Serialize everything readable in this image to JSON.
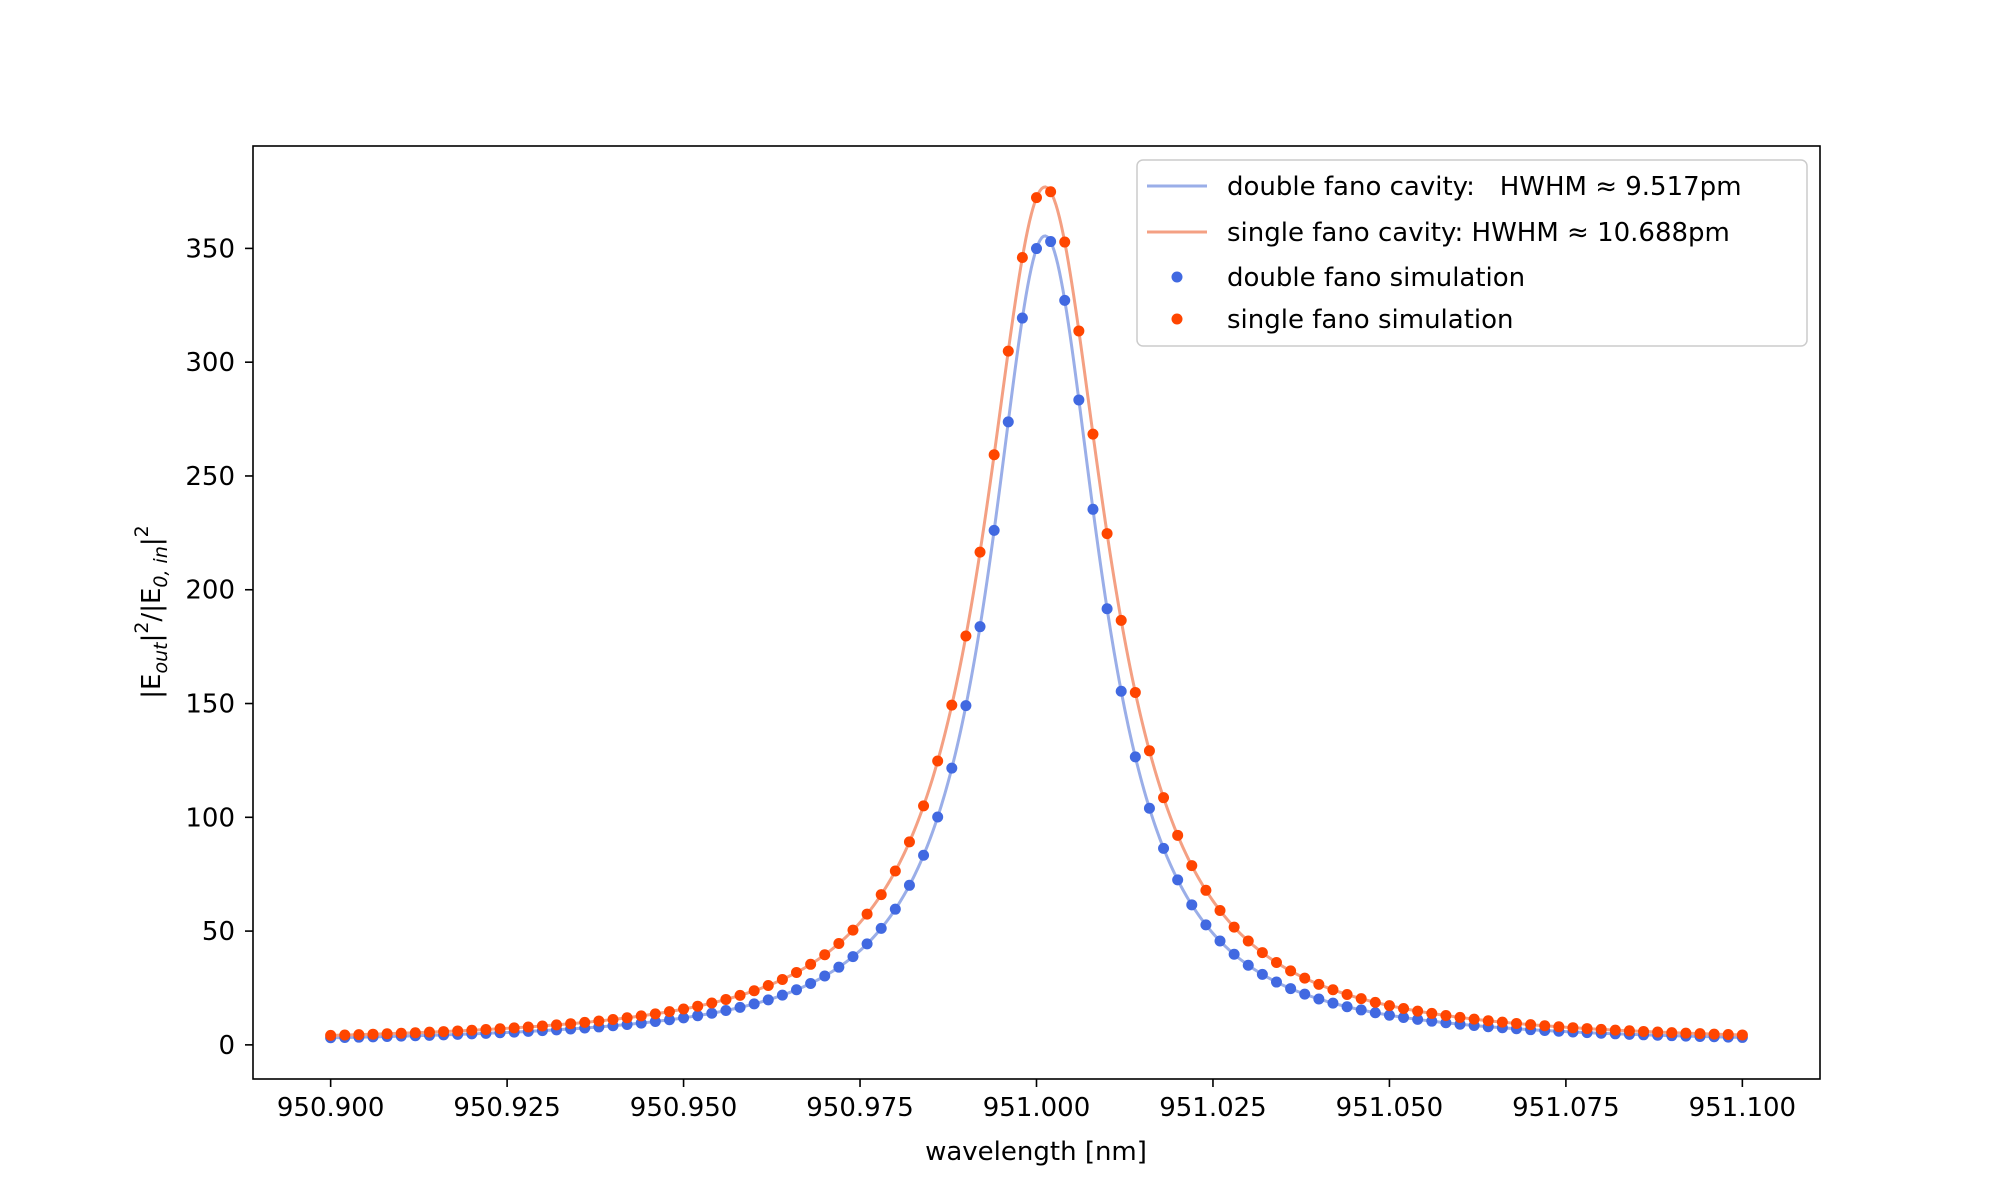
{
  "chart_data": {
    "type": "line",
    "title": "",
    "xlabel": "wavelength [nm]",
    "ylabel": "|E_out|²/|E_0,in|²",
    "xlim": [
      950.889,
      951.111
    ],
    "ylim": [
      -15,
      395
    ],
    "xticks": [
      950.9,
      950.925,
      950.95,
      950.975,
      951.0,
      951.025,
      951.05,
      951.075,
      951.1
    ],
    "xtick_labels": [
      "950.900",
      "950.925",
      "950.950",
      "950.975",
      "951.000",
      "951.025",
      "951.050",
      "951.075",
      "951.100"
    ],
    "yticks": [
      0,
      50,
      100,
      150,
      200,
      250,
      300,
      350
    ],
    "ytick_labels": [
      "0",
      "50",
      "100",
      "150",
      "200",
      "250",
      "300",
      "350"
    ],
    "grid": false,
    "legend_position": "top-right",
    "series": [
      {
        "name": "double fano cavity:   HWHM ≈ 9.517pm",
        "kind": "line",
        "color": "#9aaee8",
        "peak_x": 951.0012,
        "peak_y": 355.5,
        "hwhm_nm": 0.009517,
        "x_range": [
          950.9,
          951.1
        ]
      },
      {
        "name": "single fano cavity: HWHM ≈ 10.688pm",
        "kind": "line",
        "color": "#f4a083",
        "peak_x": 951.0012,
        "peak_y": 377.0,
        "hwhm_nm": 0.010688,
        "x_range": [
          950.9,
          951.1
        ]
      },
      {
        "name": "double fano simulation",
        "kind": "scatter",
        "color": "#4169e1",
        "peak_x": 951.0012,
        "peak_y": 355.5,
        "hwhm_nm": 0.009517,
        "x_start": 950.9,
        "x_step": 0.002,
        "count": 101
      },
      {
        "name": "single fano simulation",
        "kind": "scatter",
        "color": "#ff4500",
        "peak_x": 951.0012,
        "peak_y": 377.0,
        "hwhm_nm": 0.010688,
        "x_start": 950.9,
        "x_step": 0.002,
        "count": 101
      }
    ]
  }
}
